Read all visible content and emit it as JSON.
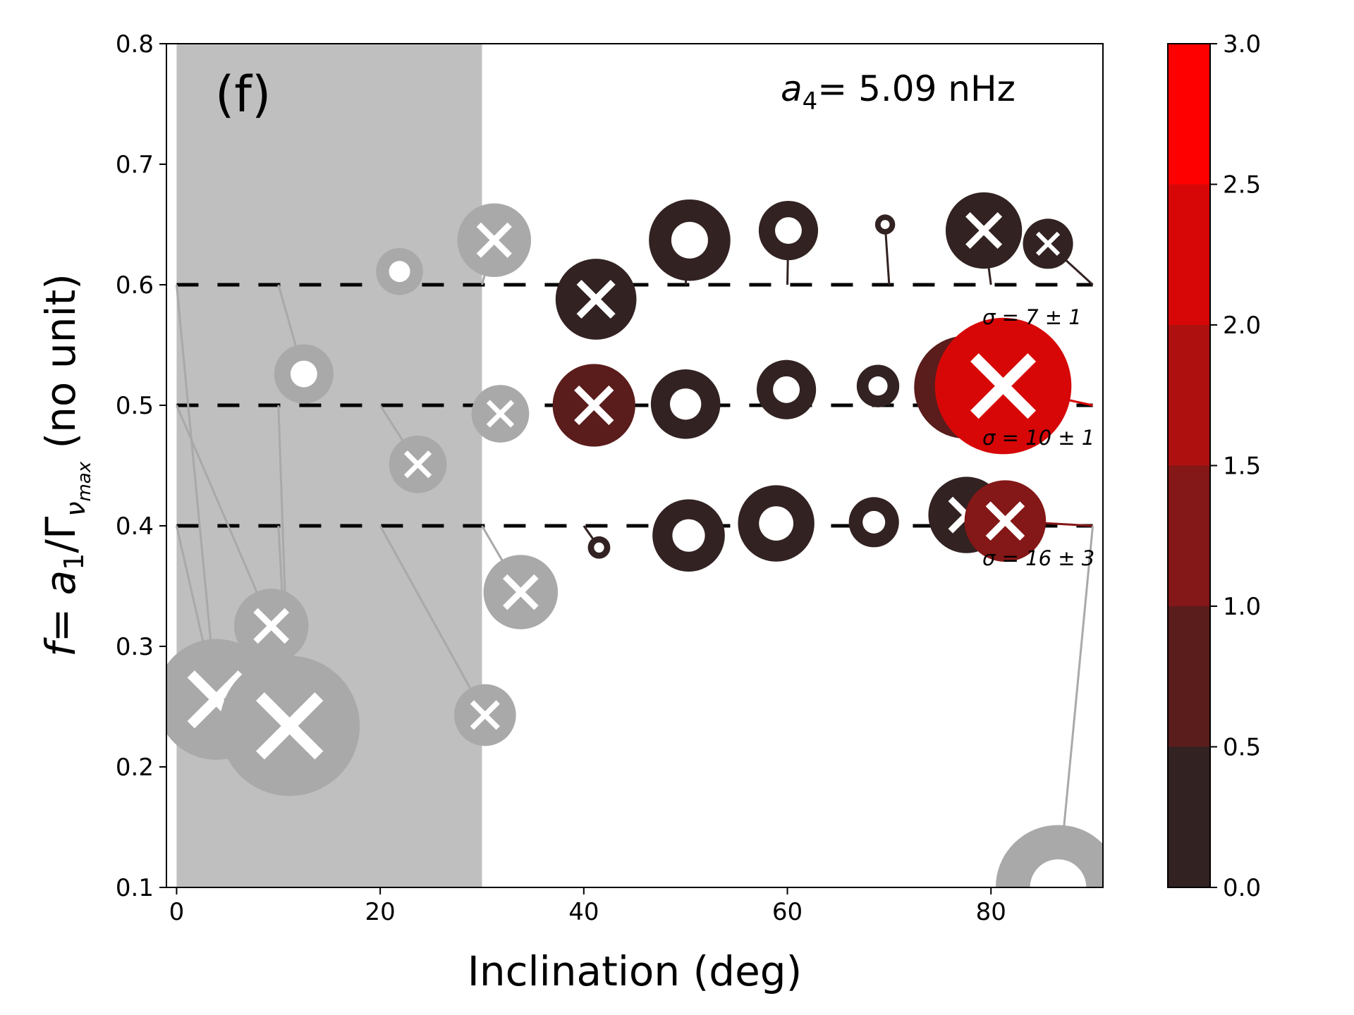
{
  "chart_data": {
    "type": "scatter",
    "panel_label": "(f)",
    "annotation": {
      "symbol": "a",
      "subscript": "4",
      "text": "= 5.09 nHz"
    },
    "xlabel": "Inclination (deg)",
    "ylabel": {
      "prefix": "f",
      "eq": "= ",
      "a": "a",
      "a_sub": "1",
      "slash": "/Γ",
      "g_sub": "ν",
      "g_subsub": "max",
      "unit": " (no unit)"
    },
    "xlim": [
      -1,
      91
    ],
    "ylim": [
      0.1,
      0.8
    ],
    "x_ticks": [
      {
        "value": 0,
        "label": "0"
      },
      {
        "value": 20,
        "label": "20"
      },
      {
        "value": 40,
        "label": "40"
      },
      {
        "value": 60,
        "label": "60"
      },
      {
        "value": 80,
        "label": "80"
      }
    ],
    "y_ticks": [
      {
        "value": 0.1,
        "label": "0.1"
      },
      {
        "value": 0.2,
        "label": "0.2"
      },
      {
        "value": 0.3,
        "label": "0.3"
      },
      {
        "value": 0.4,
        "label": "0.4"
      },
      {
        "value": 0.5,
        "label": "0.5"
      },
      {
        "value": 0.6,
        "label": "0.6"
      },
      {
        "value": 0.7,
        "label": "0.7"
      },
      {
        "value": 0.8,
        "label": "0.8"
      }
    ],
    "shaded_region": {
      "x": [
        0,
        30
      ],
      "color": "#bfbfbf"
    },
    "reference_lines": [
      {
        "y": 0.6,
        "label": "σ = 7 ± 1"
      },
      {
        "y": 0.5,
        "label": "σ = 10 ± 1"
      },
      {
        "y": 0.4,
        "label": "σ = 16 ± 3"
      }
    ],
    "colorbar": {
      "range": [
        0,
        3
      ],
      "bins": [
        {
          "from": 0.0,
          "to": 0.5,
          "color": "#332222"
        },
        {
          "from": 0.5,
          "to": 1.0,
          "color": "#5b1c1c"
        },
        {
          "from": 1.0,
          "to": 1.5,
          "color": "#841717"
        },
        {
          "from": 1.5,
          "to": 2.0,
          "color": "#ae1010"
        },
        {
          "from": 2.0,
          "to": 2.5,
          "color": "#d70707"
        },
        {
          "from": 2.5,
          "to": 3.0,
          "color": "#ff0000"
        }
      ],
      "ticks": [
        {
          "value": 0.0,
          "label": "0.0"
        },
        {
          "value": 0.5,
          "label": "0.5"
        },
        {
          "value": 1.0,
          "label": "1.0"
        },
        {
          "value": 1.5,
          "label": "1.5"
        },
        {
          "value": 2.0,
          "label": "2.0"
        },
        {
          "value": 2.5,
          "label": "2.5"
        },
        {
          "value": 3.0,
          "label": "3.0"
        }
      ]
    },
    "points": [
      {
        "x0": 0,
        "y0": 0.6,
        "x": 3.9,
        "y": 0.256,
        "size": 0.0145,
        "marker": "x",
        "color": "#a9a9a9"
      },
      {
        "x0": 0,
        "y0": 0.5,
        "x": 9.3,
        "y": 0.317,
        "size": 0.0055,
        "marker": "x",
        "color": "#a9a9a9"
      },
      {
        "x0": 0,
        "y0": 0.4,
        "x": 3.9,
        "y": 0.256,
        "size": 0.0145,
        "marker": "x",
        "color": "#a9a9a9"
      },
      {
        "x0": 10,
        "y0": 0.6,
        "x": 12.5,
        "y": 0.526,
        "size": 0.0035,
        "marker": "o",
        "color": "#a9a9a9"
      },
      {
        "x0": 10,
        "y0": 0.5,
        "x": 11.1,
        "y": 0.234,
        "size": 0.0195,
        "marker": "x",
        "color": "#a9a9a9"
      },
      {
        "x0": 10,
        "y0": 0.4,
        "x": 11.1,
        "y": 0.234,
        "size": 0.0195,
        "marker": "x",
        "color": "#a9a9a9"
      },
      {
        "x0": 20,
        "y0": 0.6,
        "x": 21.9,
        "y": 0.611,
        "size": 0.0022,
        "marker": "o",
        "color": "#a9a9a9"
      },
      {
        "x0": 20,
        "y0": 0.5,
        "x": 23.7,
        "y": 0.451,
        "size": 0.0033,
        "marker": "x",
        "color": "#a9a9a9"
      },
      {
        "x0": 20,
        "y0": 0.4,
        "x": 30.3,
        "y": 0.243,
        "size": 0.0038,
        "marker": "x",
        "color": "#a9a9a9"
      },
      {
        "x0": 30,
        "y0": 0.6,
        "x": 31.2,
        "y": 0.637,
        "size": 0.0054,
        "marker": "x",
        "color": "#a9a9a9"
      },
      {
        "x0": 30,
        "y0": 0.5,
        "x": 31.8,
        "y": 0.493,
        "size": 0.0033,
        "marker": "x",
        "color": "#a9a9a9"
      },
      {
        "x0": 30,
        "y0": 0.4,
        "x": 33.8,
        "y": 0.345,
        "size": 0.0055,
        "marker": "x",
        "color": "#a9a9a9"
      },
      {
        "x0": 40,
        "y0": 0.6,
        "x": 41.2,
        "y": 0.588,
        "size": 0.0065,
        "marker": "x",
        "color": "#332222"
      },
      {
        "x0": 40,
        "y0": 0.5,
        "x": 41.0,
        "y": 0.5,
        "size": 0.0068,
        "marker": "x",
        "color": "#5b1c1c"
      },
      {
        "x0": 40,
        "y0": 0.4,
        "x": 41.5,
        "y": 0.382,
        "size": 0.0005,
        "marker": "o",
        "color": "#332222"
      },
      {
        "x0": 50,
        "y0": 0.6,
        "x": 50.4,
        "y": 0.637,
        "size": 0.0066,
        "marker": "o",
        "color": "#332222"
      },
      {
        "x0": 50,
        "y0": 0.5,
        "x": 50.0,
        "y": 0.501,
        "size": 0.0048,
        "marker": "o",
        "color": "#332222"
      },
      {
        "x0": 50,
        "y0": 0.4,
        "x": 50.3,
        "y": 0.392,
        "size": 0.0052,
        "marker": "o",
        "color": "#332222"
      },
      {
        "x0": 60,
        "y0": 0.6,
        "x": 60.1,
        "y": 0.645,
        "size": 0.0035,
        "marker": "o",
        "color": "#332222"
      },
      {
        "x0": 60,
        "y0": 0.5,
        "x": 59.9,
        "y": 0.513,
        "size": 0.0035,
        "marker": "o",
        "color": "#332222"
      },
      {
        "x0": 60,
        "y0": 0.4,
        "x": 58.9,
        "y": 0.402,
        "size": 0.0058,
        "marker": "o",
        "color": "#332222"
      },
      {
        "x0": 70,
        "y0": 0.6,
        "x": 69.6,
        "y": 0.65,
        "size": 0.0004,
        "marker": "o",
        "color": "#332222"
      },
      {
        "x0": 70,
        "y0": 0.5,
        "x": 68.9,
        "y": 0.516,
        "size": 0.0018,
        "marker": "o",
        "color": "#332222"
      },
      {
        "x0": 70,
        "y0": 0.4,
        "x": 68.5,
        "y": 0.403,
        "size": 0.0025,
        "marker": "o",
        "color": "#332222"
      },
      {
        "x0": 80,
        "y0": 0.6,
        "x": 79.3,
        "y": 0.645,
        "size": 0.0058,
        "marker": "x",
        "color": "#332222"
      },
      {
        "x0": 80,
        "y0": 0.5,
        "x": 77.5,
        "y": 0.515,
        "size": 0.0105,
        "marker": "x",
        "color": "#5b1c1c"
      },
      {
        "x0": 80,
        "y0": 0.4,
        "x": 77.6,
        "y": 0.409,
        "size": 0.0058,
        "marker": "x",
        "color": "#332222"
      },
      {
        "x0": 90,
        "y0": 0.6,
        "x": 85.6,
        "y": 0.634,
        "size": 0.0025,
        "marker": "x",
        "color": "#332222"
      },
      {
        "x0": 90,
        "y0": 0.5,
        "x": 81.2,
        "y": 0.516,
        "size": 0.0185,
        "marker": "x",
        "color": "#d70707"
      },
      {
        "x0": 90,
        "y0": 0.4,
        "x": 81.4,
        "y": 0.404,
        "size": 0.0066,
        "marker": "x",
        "color": "#841717"
      },
      {
        "x0": 90,
        "y0": 0.4,
        "x": 86.6,
        "y": 0.1,
        "size": 0.0155,
        "marker": "o",
        "color": "#a9a9a9"
      }
    ]
  }
}
